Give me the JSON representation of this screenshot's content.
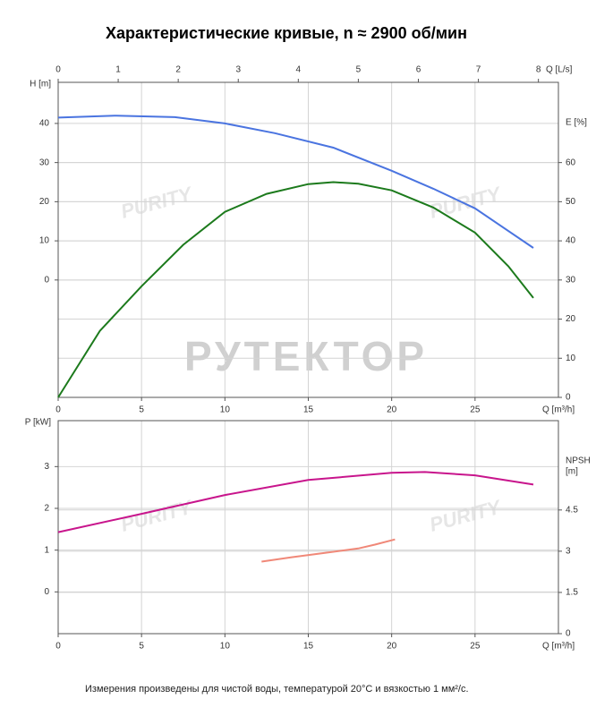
{
  "title": "Характеристические кривые, n ≈ 2900 об/мин",
  "watermark": "РУТЕКТОР",
  "watermark_logo": "PURITY",
  "footnote": "Измерения произведены для чистой воды, температурой 20°C и вязкостью 1 мм²/с.",
  "chart_data": [
    {
      "type": "line",
      "x_label": "Q [m³/h]",
      "x2_label": "Q [L/s]",
      "y_label": "H [m]",
      "y2_label": "E [%]",
      "xlim": [
        0,
        30
      ],
      "xticks": [
        0,
        5,
        10,
        15,
        20,
        25
      ],
      "x2lim": [
        0,
        8.333
      ],
      "x2ticks": [
        0,
        1,
        2,
        3,
        4,
        5,
        6,
        7,
        8
      ],
      "ylim": [
        -30,
        50.5
      ],
      "yticks": [
        0,
        10,
        20,
        30,
        40
      ],
      "y2lim": [
        0,
        80.5
      ],
      "y2ticks": [
        0,
        10,
        20,
        30,
        40,
        50,
        60
      ],
      "grid": true,
      "series": [
        {
          "color": "#4a74e0",
          "x": [
            0,
            3.5,
            7,
            10,
            13,
            16.5,
            20,
            22.5,
            25,
            28.5
          ],
          "values": [
            41.5,
            42,
            41.6,
            40,
            37.5,
            33.8,
            27.9,
            23.3,
            18.3,
            8.2
          ]
        },
        {
          "color": "#1c7a1c",
          "axis": "y2",
          "x": [
            0,
            2.5,
            5,
            7.5,
            10,
            12.5,
            15,
            16.5,
            18,
            20,
            22.5,
            25,
            27,
            28.5
          ],
          "values": [
            0,
            17,
            28.4,
            39,
            47.4,
            52,
            54.5,
            55,
            54.6,
            52.9,
            48.5,
            42.1,
            33.5,
            25.4
          ]
        }
      ]
    },
    {
      "type": "line",
      "x_label": "Q [m³/h]",
      "y_label": "P [kW]",
      "y2_label": "NPSH",
      "y2_unit": "[m]",
      "xlim": [
        0,
        30
      ],
      "xticks": [
        0,
        5,
        10,
        15,
        20,
        25
      ],
      "ylim": [
        -1,
        4.1
      ],
      "yticks": [
        0,
        1,
        2,
        3
      ],
      "y2lim": [
        0,
        7.75
      ],
      "y2ticks": [
        0,
        1.5,
        3,
        4.5
      ],
      "grid": true,
      "series": [
        {
          "color": "#c8158c",
          "x": [
            0,
            5,
            10,
            15,
            20,
            22,
            25,
            28.5
          ],
          "values": [
            1.43,
            1.87,
            2.32,
            2.68,
            2.85,
            2.87,
            2.79,
            2.57
          ]
        },
        {
          "color": "#f08878",
          "axis": "y2",
          "x": [
            12.2,
            14,
            16,
            18,
            19,
            20.2
          ],
          "values": [
            2.62,
            2.78,
            2.94,
            3.1,
            3.24,
            3.43
          ]
        }
      ]
    }
  ]
}
